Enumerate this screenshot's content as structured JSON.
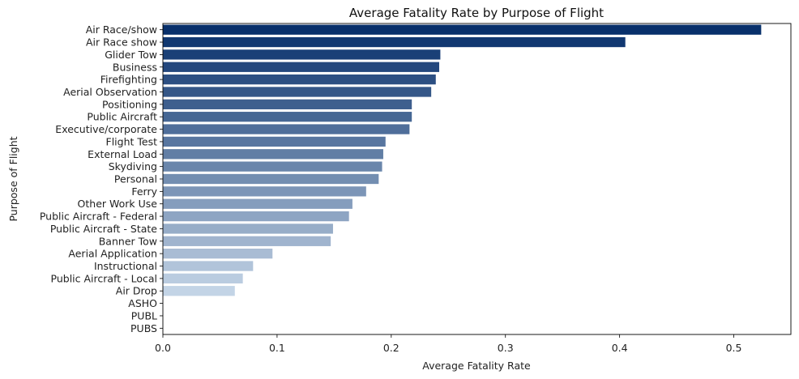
{
  "chart_data": {
    "type": "bar",
    "orientation": "horizontal",
    "title": "Average Fatality Rate by Purpose of Flight",
    "xlabel": "Average Fatality Rate",
    "ylabel": "Purpose of Flight",
    "xlim": [
      0,
      0.55
    ],
    "xticks": [
      "0.0",
      "0.1",
      "0.2",
      "0.3",
      "0.4",
      "0.5"
    ],
    "xtick_values": [
      0,
      0.1,
      0.2,
      0.3,
      0.4,
      0.5
    ],
    "grid": false,
    "legend": "none",
    "palette": "Blues_r",
    "color_dark": "#08306b",
    "color_light": "#deebf7",
    "categories": [
      "Air Race/show",
      "Air Race show",
      "Glider Tow",
      "Business",
      "Firefighting",
      "Aerial Observation",
      "Positioning",
      "Public Aircraft",
      "Executive/corporate",
      "Flight Test",
      "External Load",
      "Skydiving",
      "Personal",
      "Ferry",
      "Other Work Use",
      "Public Aircraft - Federal",
      "Public Aircraft - State",
      "Banner Tow",
      "Aerial Application",
      "Instructional",
      "Public Aircraft - Local",
      "Air Drop",
      "ASHO",
      "PUBL",
      "PUBS"
    ],
    "values": [
      0.524,
      0.405,
      0.243,
      0.242,
      0.239,
      0.235,
      0.218,
      0.218,
      0.216,
      0.195,
      0.193,
      0.192,
      0.189,
      0.178,
      0.166,
      0.163,
      0.149,
      0.147,
      0.096,
      0.079,
      0.07,
      0.063,
      0.0,
      0.0,
      0.0
    ]
  }
}
